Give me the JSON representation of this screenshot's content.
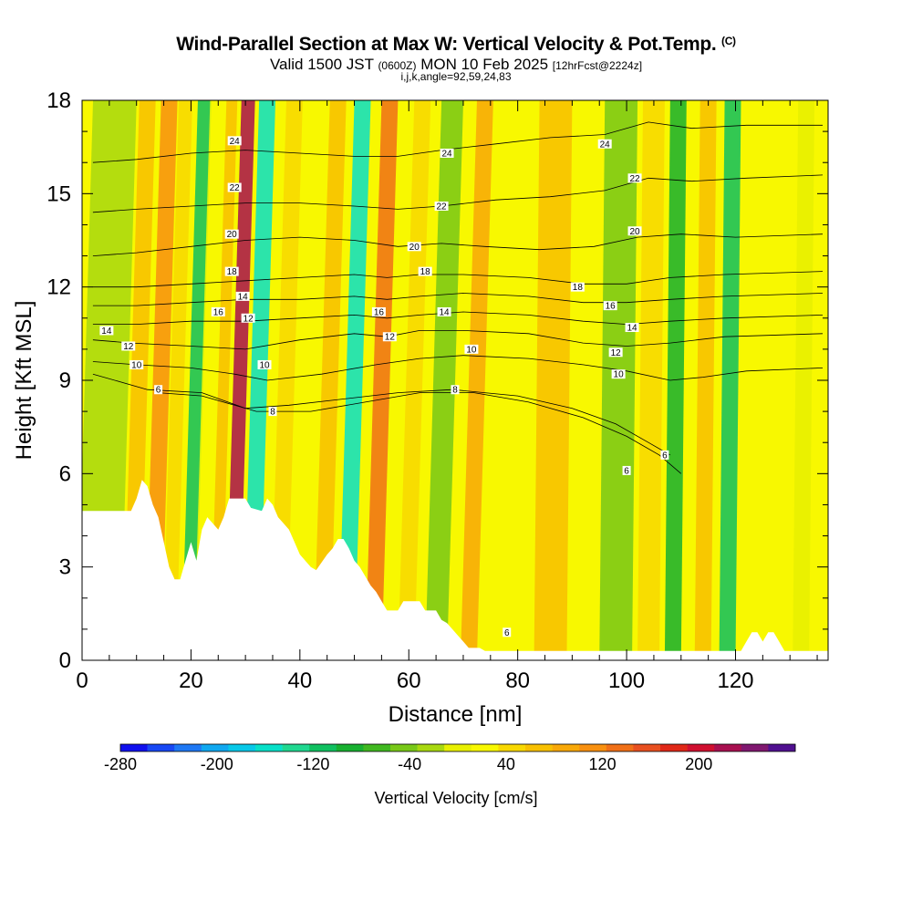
{
  "header": {
    "title": "Wind-Parallel Section at Max W: Vertical Velocity & Pot.Temp.",
    "title_unit": "(C)",
    "valid_pre": "Valid 1500 JST",
    "valid_utc": "(0600Z)",
    "valid_date": "MON 10 Feb 2025",
    "forecast": "[12hrFcst@2224z]",
    "indices": "i,j,k,angle=92,59,24,83"
  },
  "chart_data": {
    "type": "heatmap",
    "xlabel": "Distance [nm]",
    "ylabel": "Height [Kft MSL]",
    "xlim": [
      0,
      137
    ],
    "ylim": [
      0,
      18
    ],
    "x_ticks": [
      0,
      20,
      40,
      60,
      80,
      100,
      120
    ],
    "y_ticks": [
      0,
      3,
      6,
      9,
      12,
      15,
      18
    ],
    "colorbar": {
      "label": "Vertical Velocity [cm/s]",
      "range": [
        -280,
        280
      ],
      "tick_labels": [
        "-280",
        "-200",
        "-120",
        "-40",
        "40",
        "120",
        "200"
      ],
      "tick_values": [
        -280,
        -200,
        -120,
        -40,
        40,
        120,
        200
      ],
      "colors": [
        "#1010ee",
        "#1848f4",
        "#1e78f4",
        "#10a8f0",
        "#08c8e8",
        "#08e0c8",
        "#20d890",
        "#10c060",
        "#18b030",
        "#40b820",
        "#78c818",
        "#a8d810",
        "#e8f000",
        "#f8f800",
        "#f8d800",
        "#f8c000",
        "#f8a808",
        "#f89010",
        "#f07018",
        "#e85020",
        "#e02818",
        "#d01030",
        "#a81050",
        "#801870",
        "#501090"
      ]
    },
    "terrain": [
      [
        0,
        4.8
      ],
      [
        4,
        4.8
      ],
      [
        9,
        4.8
      ],
      [
        10,
        5.2
      ],
      [
        11,
        5.8
      ],
      [
        12,
        5.6
      ],
      [
        13,
        5.0
      ],
      [
        14,
        4.6
      ],
      [
        15,
        3.8
      ],
      [
        16,
        3.0
      ],
      [
        17,
        2.6
      ],
      [
        18,
        2.6
      ],
      [
        19,
        3.2
      ],
      [
        20,
        3.8
      ],
      [
        21,
        3.2
      ],
      [
        22,
        4.2
      ],
      [
        23,
        4.6
      ],
      [
        24,
        4.4
      ],
      [
        25,
        4.2
      ],
      [
        26,
        4.6
      ],
      [
        27,
        5.2
      ],
      [
        30,
        5.2
      ],
      [
        31,
        4.9
      ],
      [
        33,
        4.8
      ],
      [
        34,
        5.2
      ],
      [
        35,
        5.0
      ],
      [
        36,
        4.6
      ],
      [
        37,
        4.4
      ],
      [
        38,
        4.2
      ],
      [
        39,
        3.8
      ],
      [
        40,
        3.4
      ],
      [
        42,
        3.0
      ],
      [
        43,
        2.9
      ],
      [
        45,
        3.4
      ],
      [
        46,
        3.6
      ],
      [
        47,
        3.9
      ],
      [
        48,
        3.9
      ],
      [
        49,
        3.6
      ],
      [
        50,
        3.2
      ],
      [
        51,
        3.0
      ],
      [
        52,
        2.7
      ],
      [
        53,
        2.4
      ],
      [
        54,
        2.2
      ],
      [
        55,
        1.9
      ],
      [
        56,
        1.6
      ],
      [
        58,
        1.6
      ],
      [
        59,
        1.9
      ],
      [
        62,
        1.9
      ],
      [
        63,
        1.6
      ],
      [
        65,
        1.6
      ],
      [
        66,
        1.3
      ],
      [
        67,
        1.2
      ],
      [
        68,
        1.0
      ],
      [
        69,
        0.8
      ],
      [
        70,
        0.6
      ],
      [
        71,
        0.4
      ],
      [
        73,
        0.4
      ],
      [
        74,
        0.3
      ],
      [
        110,
        0.3
      ],
      [
        121,
        0.3
      ],
      [
        122,
        0.6
      ],
      [
        123,
        0.9
      ],
      [
        124,
        0.9
      ],
      [
        125,
        0.6
      ],
      [
        126,
        0.9
      ],
      [
        127,
        0.9
      ],
      [
        128,
        0.6
      ],
      [
        129,
        0.3
      ],
      [
        137,
        0.3
      ]
    ],
    "w_bands": [
      {
        "x": 3,
        "w": 8,
        "v": -20
      },
      {
        "x": 9,
        "w": 3,
        "v": 60
      },
      {
        "x": 13,
        "w": 3,
        "v": 110
      },
      {
        "x": 16,
        "w": 2.5,
        "v": 50
      },
      {
        "x": 19.5,
        "w": 2.5,
        "v": -120
      },
      {
        "x": 21.5,
        "w": 2,
        "v": 20
      },
      {
        "x": 24.5,
        "w": 2,
        "v": 60
      },
      {
        "x": 27.5,
        "w": 2.5,
        "v": 220
      },
      {
        "x": 31,
        "w": 3,
        "v": -150
      },
      {
        "x": 36,
        "w": 3,
        "v": 40
      },
      {
        "x": 40,
        "w": 3,
        "v": 20
      },
      {
        "x": 44,
        "w": 3,
        "v": 70
      },
      {
        "x": 48.5,
        "w": 3,
        "v": -150
      },
      {
        "x": 53.5,
        "w": 3,
        "v": 130
      },
      {
        "x": 59.5,
        "w": 3,
        "v": 40
      },
      {
        "x": 65,
        "w": 4,
        "v": -40
      },
      {
        "x": 71,
        "w": 3,
        "v": 80
      },
      {
        "x": 78,
        "w": 4,
        "v": 30
      },
      {
        "x": 86,
        "w": 6,
        "v": 60
      },
      {
        "x": 98,
        "w": 6,
        "v": -40
      },
      {
        "x": 104,
        "w": 4,
        "v": 50
      },
      {
        "x": 108.5,
        "w": 3,
        "v": -100
      },
      {
        "x": 114,
        "w": 3,
        "v": 60
      },
      {
        "x": 118.5,
        "w": 3,
        "v": -110
      },
      {
        "x": 125,
        "w": 5,
        "v": 30
      },
      {
        "x": 132,
        "w": 3,
        "v": -10
      }
    ],
    "theta_contours": [
      {
        "level": "6",
        "points": [
          [
            14,
            8.6
          ],
          [
            22,
            8.5
          ],
          [
            32,
            8.0
          ],
          [
            42,
            8.0
          ],
          [
            52,
            8.3
          ],
          [
            62,
            8.6
          ],
          [
            72,
            8.6
          ],
          [
            82,
            8.3
          ],
          [
            92,
            7.8
          ],
          [
            100,
            7.2
          ],
          [
            106,
            6.6
          ],
          [
            110,
            6.0
          ]
        ]
      },
      {
        "level": "8",
        "points": [
          [
            2,
            9.2
          ],
          [
            12,
            8.7
          ],
          [
            22,
            8.6
          ],
          [
            30,
            8.1
          ],
          [
            38,
            8.2
          ],
          [
            48,
            8.4
          ],
          [
            58,
            8.6
          ],
          [
            68,
            8.7
          ],
          [
            80,
            8.5
          ],
          [
            90,
            8.1
          ],
          [
            98,
            7.6
          ],
          [
            104,
            7.0
          ],
          [
            108,
            6.6
          ]
        ]
      },
      {
        "level": "10",
        "points": [
          [
            2,
            9.6
          ],
          [
            10,
            9.5
          ],
          [
            20,
            9.4
          ],
          [
            28,
            9.2
          ],
          [
            34,
            9.0
          ],
          [
            44,
            9.2
          ],
          [
            54,
            9.5
          ],
          [
            62,
            9.7
          ],
          [
            70,
            9.8
          ],
          [
            82,
            9.7
          ],
          [
            92,
            9.5
          ],
          [
            100,
            9.3
          ],
          [
            108,
            9.0
          ],
          [
            114,
            9.1
          ],
          [
            122,
            9.3
          ],
          [
            136,
            9.4
          ]
        ]
      },
      {
        "level": "12",
        "points": [
          [
            2,
            10.3
          ],
          [
            9,
            10.2
          ],
          [
            20,
            10.1
          ],
          [
            30,
            10.0
          ],
          [
            40,
            10.3
          ],
          [
            50,
            10.5
          ],
          [
            56,
            10.4
          ],
          [
            62,
            10.6
          ],
          [
            70,
            10.6
          ],
          [
            82,
            10.5
          ],
          [
            92,
            10.2
          ],
          [
            100,
            10.1
          ],
          [
            108,
            10.2
          ],
          [
            118,
            10.4
          ],
          [
            136,
            10.5
          ]
        ]
      },
      {
        "level": "14",
        "points": [
          [
            2,
            10.8
          ],
          [
            10,
            10.8
          ],
          [
            20,
            10.9
          ],
          [
            30,
            10.9
          ],
          [
            40,
            11.0
          ],
          [
            50,
            11.1
          ],
          [
            56,
            11.0
          ],
          [
            62,
            11.1
          ],
          [
            70,
            11.2
          ],
          [
            82,
            11.1
          ],
          [
            92,
            10.9
          ],
          [
            100,
            10.8
          ],
          [
            108,
            10.9
          ],
          [
            118,
            11.0
          ],
          [
            136,
            11.1
          ]
        ]
      },
      {
        "level": "16",
        "points": [
          [
            2,
            11.4
          ],
          [
            10,
            11.4
          ],
          [
            20,
            11.5
          ],
          [
            30,
            11.6
          ],
          [
            40,
            11.6
          ],
          [
            50,
            11.7
          ],
          [
            56,
            11.6
          ],
          [
            62,
            11.7
          ],
          [
            70,
            11.8
          ],
          [
            82,
            11.7
          ],
          [
            92,
            11.5
          ],
          [
            100,
            11.5
          ],
          [
            108,
            11.6
          ],
          [
            118,
            11.7
          ],
          [
            136,
            11.8
          ]
        ]
      },
      {
        "level": "18",
        "points": [
          [
            2,
            12.0
          ],
          [
            10,
            12.0
          ],
          [
            20,
            12.1
          ],
          [
            30,
            12.2
          ],
          [
            40,
            12.3
          ],
          [
            50,
            12.4
          ],
          [
            56,
            12.3
          ],
          [
            62,
            12.4
          ],
          [
            70,
            12.4
          ],
          [
            82,
            12.3
          ],
          [
            92,
            12.1
          ],
          [
            100,
            12.1
          ],
          [
            108,
            12.3
          ],
          [
            118,
            12.4
          ],
          [
            136,
            12.5
          ]
        ]
      },
      {
        "level": "20",
        "points": [
          [
            2,
            13.0
          ],
          [
            10,
            13.1
          ],
          [
            20,
            13.3
          ],
          [
            30,
            13.5
          ],
          [
            40,
            13.6
          ],
          [
            50,
            13.5
          ],
          [
            58,
            13.3
          ],
          [
            66,
            13.4
          ],
          [
            74,
            13.3
          ],
          [
            84,
            13.2
          ],
          [
            94,
            13.3
          ],
          [
            102,
            13.6
          ],
          [
            110,
            13.7
          ],
          [
            120,
            13.6
          ],
          [
            136,
            13.7
          ]
        ]
      },
      {
        "level": "22",
        "points": [
          [
            2,
            14.4
          ],
          [
            10,
            14.5
          ],
          [
            20,
            14.6
          ],
          [
            30,
            14.7
          ],
          [
            40,
            14.7
          ],
          [
            50,
            14.6
          ],
          [
            58,
            14.5
          ],
          [
            66,
            14.6
          ],
          [
            76,
            14.8
          ],
          [
            86,
            14.9
          ],
          [
            96,
            15.1
          ],
          [
            104,
            15.5
          ],
          [
            112,
            15.4
          ],
          [
            122,
            15.5
          ],
          [
            136,
            15.6
          ]
        ]
      },
      {
        "level": "24",
        "points": [
          [
            2,
            16.0
          ],
          [
            10,
            16.1
          ],
          [
            20,
            16.3
          ],
          [
            30,
            16.4
          ],
          [
            40,
            16.3
          ],
          [
            50,
            16.2
          ],
          [
            58,
            16.2
          ],
          [
            66,
            16.4
          ],
          [
            76,
            16.6
          ],
          [
            86,
            16.8
          ],
          [
            96,
            16.9
          ],
          [
            104,
            17.3
          ],
          [
            112,
            17.1
          ],
          [
            122,
            17.2
          ],
          [
            136,
            17.2
          ]
        ]
      }
    ],
    "contour_labels": [
      {
        "text": "14",
        "x": 4.5,
        "y": 10.6
      },
      {
        "text": "12",
        "x": 8.5,
        "y": 10.1
      },
      {
        "text": "10",
        "x": 10,
        "y": 9.5
      },
      {
        "text": "6",
        "x": 14,
        "y": 8.7
      },
      {
        "text": "16",
        "x": 25,
        "y": 11.2
      },
      {
        "text": "18",
        "x": 27.5,
        "y": 12.5
      },
      {
        "text": "20",
        "x": 27.5,
        "y": 13.7
      },
      {
        "text": "22",
        "x": 28,
        "y": 15.2
      },
      {
        "text": "24",
        "x": 28,
        "y": 16.7
      },
      {
        "text": "14",
        "x": 29.5,
        "y": 11.7
      },
      {
        "text": "12",
        "x": 30.5,
        "y": 11.0
      },
      {
        "text": "10",
        "x": 33.5,
        "y": 9.5
      },
      {
        "text": "8",
        "x": 35,
        "y": 8.0
      },
      {
        "text": "16",
        "x": 54.5,
        "y": 11.2
      },
      {
        "text": "12",
        "x": 56.5,
        "y": 10.4
      },
      {
        "text": "20",
        "x": 61,
        "y": 13.3
      },
      {
        "text": "18",
        "x": 63,
        "y": 12.5
      },
      {
        "text": "22",
        "x": 66,
        "y": 14.6
      },
      {
        "text": "14",
        "x": 66.5,
        "y": 11.2
      },
      {
        "text": "24",
        "x": 67,
        "y": 16.3
      },
      {
        "text": "10",
        "x": 71.5,
        "y": 10.0
      },
      {
        "text": "8",
        "x": 68.5,
        "y": 8.7
      },
      {
        "text": "6",
        "x": 78,
        "y": 0.9
      },
      {
        "text": "18",
        "x": 91,
        "y": 12.0
      },
      {
        "text": "16",
        "x": 97,
        "y": 11.4
      },
      {
        "text": "14",
        "x": 101,
        "y": 10.7
      },
      {
        "text": "12",
        "x": 98,
        "y": 9.9
      },
      {
        "text": "10",
        "x": 98.5,
        "y": 9.2
      },
      {
        "text": "24",
        "x": 96,
        "y": 16.6
      },
      {
        "text": "22",
        "x": 101.5,
        "y": 15.5
      },
      {
        "text": "20",
        "x": 101.5,
        "y": 13.8
      },
      {
        "text": "6",
        "x": 100,
        "y": 6.1
      },
      {
        "text": "6",
        "x": 107,
        "y": 6.6
      }
    ]
  }
}
